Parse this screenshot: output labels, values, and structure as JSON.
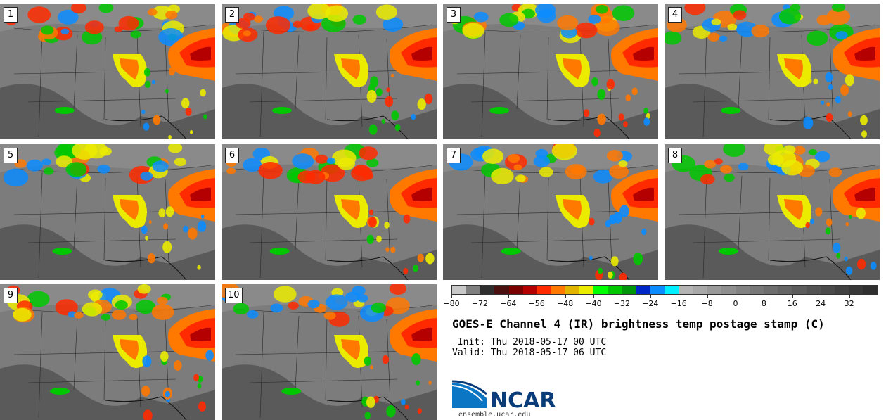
{
  "chart_data": {
    "type": "heatmap",
    "title": "GOES-E Channel 4 (IR) brightness temp postage stamp (C)",
    "init": " Init: Thu 2018-05-17 00 UTC",
    "valid": "Valid: Thu 2018-05-17 06 UTC",
    "panels": [
      "1",
      "2",
      "3",
      "4",
      "5",
      "6",
      "7",
      "8",
      "9",
      "10"
    ],
    "colorbar": {
      "units": "C",
      "range": [
        -80,
        40
      ],
      "tick_labels": [
        "-80",
        "-72",
        "-64",
        "-56",
        "-48",
        "-40",
        "-32",
        "-24",
        "-16",
        "-8",
        "0",
        "8",
        "16",
        "24",
        "32"
      ],
      "tick_values": [
        -80,
        -72,
        -64,
        -56,
        -48,
        -40,
        -32,
        -24,
        -16,
        -8,
        0,
        8,
        16,
        24,
        32
      ],
      "colors": [
        "#c8c8c8",
        "#7f7f7f",
        "#2e2e2e",
        "#4a1010",
        "#7a0000",
        "#b40000",
        "#ff2a00",
        "#ff7800",
        "#e1b400",
        "#ebeb00",
        "#00ff00",
        "#00c800",
        "#00960a",
        "#0026c8",
        "#0a8cff",
        "#00f0ff",
        "#b4b4b4",
        "#a8a8a8",
        "#9a9a9a",
        "#8e8e8e",
        "#828282",
        "#777777",
        "#6e6e6e",
        "#656565",
        "#5c5c5c",
        "#535353",
        "#4a4a4a",
        "#414141",
        "#383838",
        "#2f2f2f"
      ]
    }
  },
  "logo": {
    "text": "NCAR",
    "site": "ensemble.ucar.edu",
    "blue": "#0a76c4",
    "navy": "#0a3c7a"
  }
}
